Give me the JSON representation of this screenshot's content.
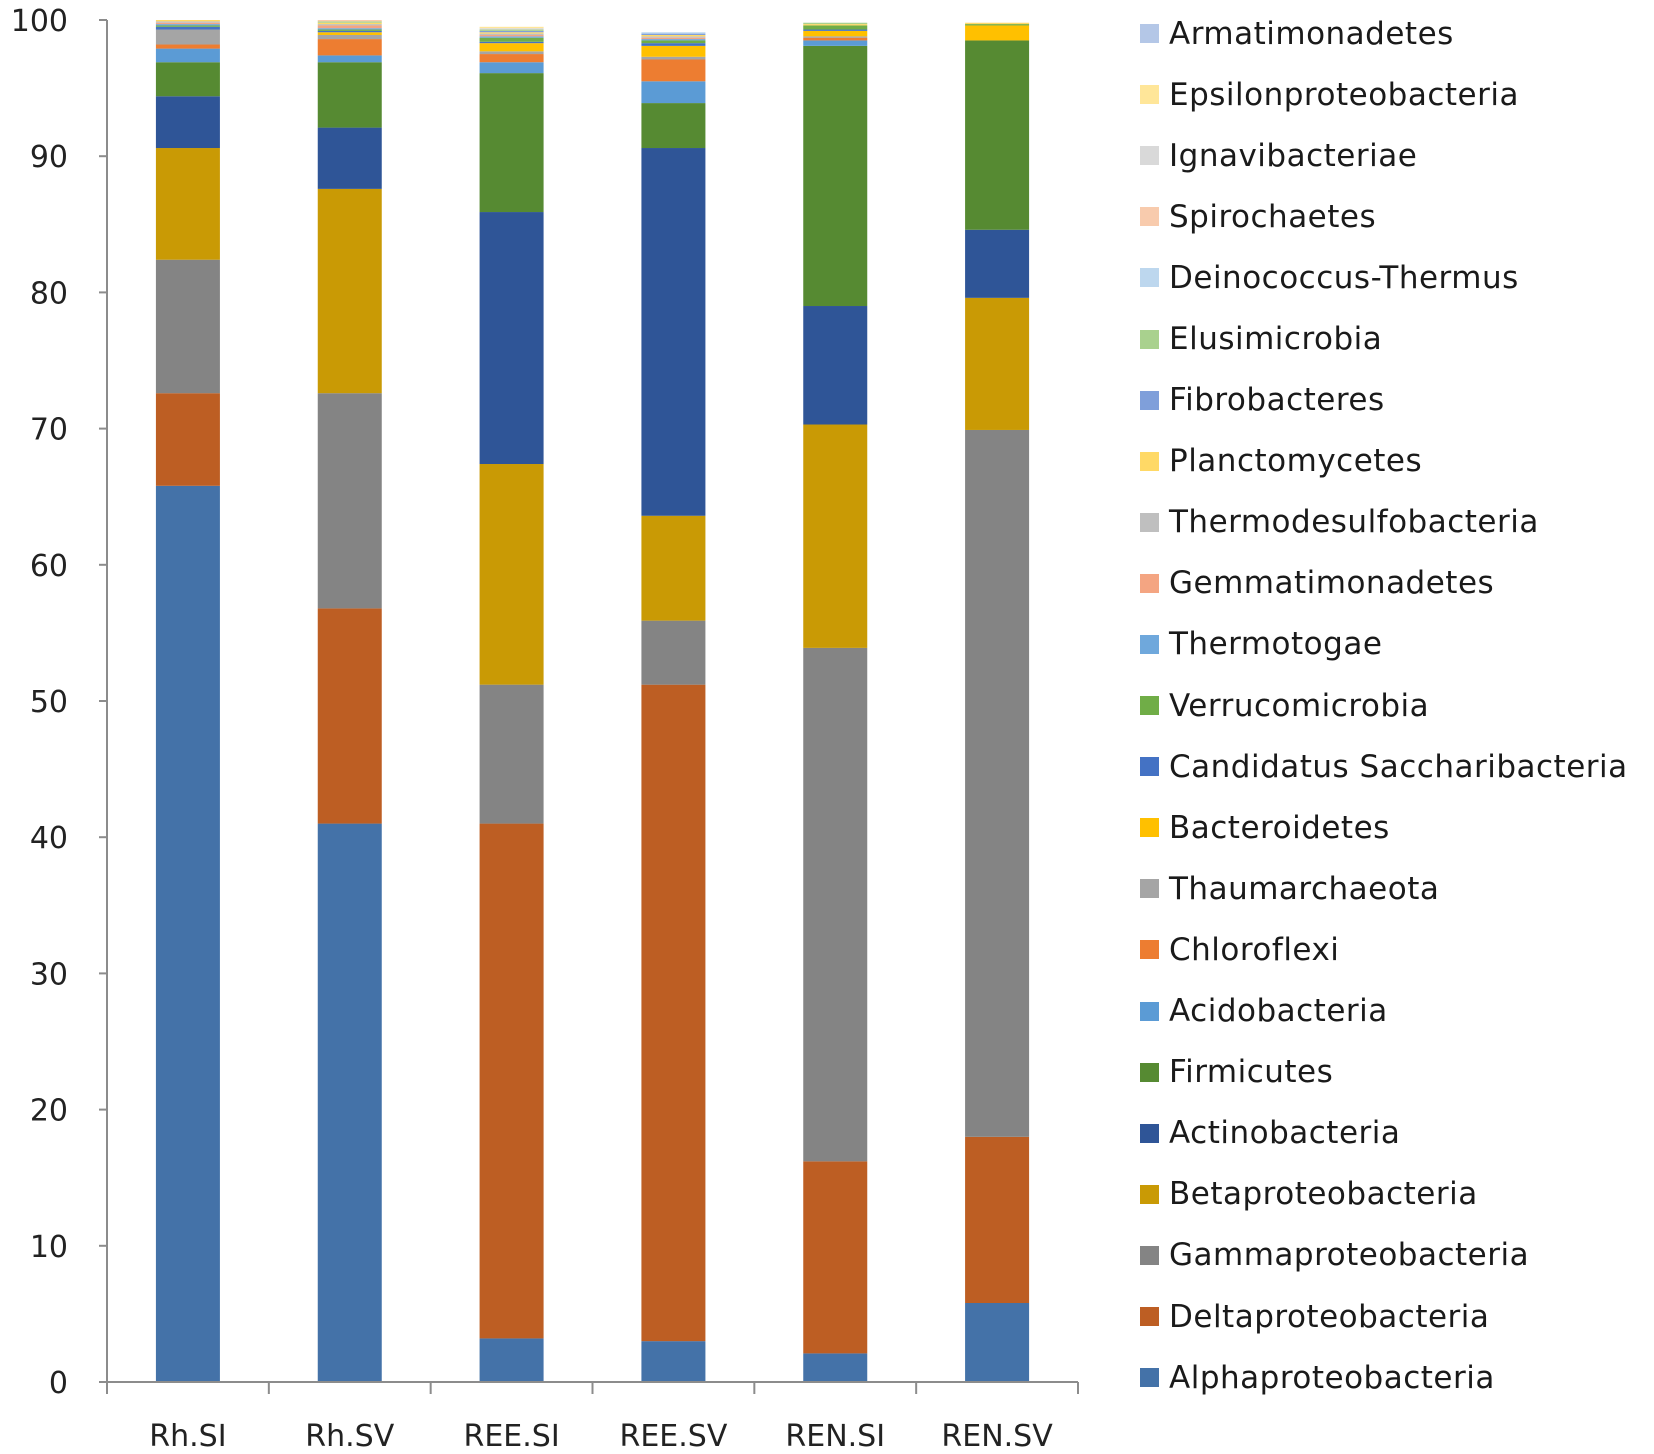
{
  "chart_data": {
    "type": "bar",
    "stacked": true,
    "title": "",
    "xlabel": "",
    "ylabel": "",
    "ylim": [
      0,
      100
    ],
    "yticks": [
      0,
      10,
      20,
      30,
      40,
      50,
      60,
      70,
      80,
      90,
      100
    ],
    "categories": [
      "Rh.SI",
      "Rh.SV",
      "REE.SI",
      "REE.SV",
      "REN.SI",
      "REN.SV"
    ],
    "legend_position": "right",
    "grid": false,
    "series": [
      {
        "name": "Alphaproteobacteria",
        "color": "#4472A8",
        "values": [
          65.8,
          41.0,
          3.2,
          3.0,
          2.1,
          5.8
        ]
      },
      {
        "name": "Deltaproteobacteria",
        "color": "#BD5E23",
        "values": [
          6.8,
          15.8,
          37.8,
          48.2,
          14.1,
          12.2
        ]
      },
      {
        "name": "Gammaproteobacteria",
        "color": "#848484",
        "values": [
          9.8,
          15.8,
          10.2,
          4.7,
          37.7,
          51.9
        ]
      },
      {
        "name": "Betaproteobacteria",
        "color": "#C99A05",
        "values": [
          8.2,
          15.0,
          16.2,
          7.7,
          16.4,
          9.7
        ]
      },
      {
        "name": "Actinobacteria",
        "color": "#2F5597",
        "values": [
          3.8,
          4.5,
          18.5,
          27.0,
          8.7,
          5.0
        ]
      },
      {
        "name": "Firmicutes",
        "color": "#568A32",
        "values": [
          2.5,
          4.8,
          10.2,
          3.3,
          19.1,
          13.9
        ]
      },
      {
        "name": "Acidobacteria",
        "color": "#5B9BD5",
        "values": [
          1.0,
          0.5,
          0.8,
          1.6,
          0.4,
          0.0
        ]
      },
      {
        "name": "Chloroflexi",
        "color": "#ED7D31",
        "values": [
          0.3,
          1.2,
          0.6,
          1.6,
          0.2,
          0.0
        ]
      },
      {
        "name": "Thaumarchaeota",
        "color": "#A5A5A5",
        "values": [
          1.1,
          0.3,
          0.2,
          0.2,
          0.1,
          0.0
        ]
      },
      {
        "name": "Bacteroidetes",
        "color": "#FFC000",
        "values": [
          0.0,
          0.2,
          0.6,
          0.8,
          0.4,
          1.1
        ]
      },
      {
        "name": "Candidatus Saccharibacteria",
        "color": "#4472C4",
        "values": [
          0.2,
          0.1,
          0.1,
          0.2,
          0.1,
          0.0
        ]
      },
      {
        "name": "Verrucomicrobia",
        "color": "#70AD47",
        "values": [
          0.1,
          0.1,
          0.3,
          0.2,
          0.3,
          0.1
        ]
      },
      {
        "name": "Thermotogae",
        "color": "#6FA8DC",
        "values": [
          0.1,
          0.1,
          0.1,
          0.1,
          0.0,
          0.0
        ]
      },
      {
        "name": "Gemmatimonadetes",
        "color": "#F4A582",
        "values": [
          0.1,
          0.2,
          0.1,
          0.1,
          0.0,
          0.0
        ]
      },
      {
        "name": "Thermodesulfobacteria",
        "color": "#BFBFBF",
        "values": [
          0.1,
          0.1,
          0.1,
          0.1,
          0.0,
          0.0
        ]
      },
      {
        "name": "Planctomycetes",
        "color": "#FFD966",
        "values": [
          0.1,
          0.1,
          0.1,
          0.1,
          0.1,
          0.1
        ]
      },
      {
        "name": "Fibrobacteres",
        "color": "#7F9FDA",
        "values": [
          0.0,
          0.0,
          0.1,
          0.1,
          0.0,
          0.0
        ]
      },
      {
        "name": "Elusimicrobia",
        "color": "#A9D18E",
        "values": [
          0.0,
          0.1,
          0.1,
          0.0,
          0.1,
          0.0
        ]
      },
      {
        "name": "Deinococcus-Thermus",
        "color": "#BDD7EE",
        "values": [
          0.0,
          0.0,
          0.0,
          0.1,
          0.0,
          0.0
        ]
      },
      {
        "name": "Spirochaetes",
        "color": "#F8CBAD",
        "values": [
          0.0,
          0.1,
          0.0,
          0.0,
          0.0,
          0.0
        ]
      },
      {
        "name": "Ignavibacteriae",
        "color": "#D9D9D9",
        "values": [
          0.0,
          0.0,
          0.1,
          0.0,
          0.0,
          0.0
        ]
      },
      {
        "name": "Epsilonproteobacteria",
        "color": "#FFE699",
        "values": [
          0.0,
          0.0,
          0.1,
          0.0,
          0.0,
          0.0
        ]
      },
      {
        "name": "Armatimonadetes",
        "color": "#B4C7E7",
        "values": [
          0.0,
          0.0,
          0.0,
          0.0,
          0.0,
          0.0
        ]
      }
    ]
  }
}
